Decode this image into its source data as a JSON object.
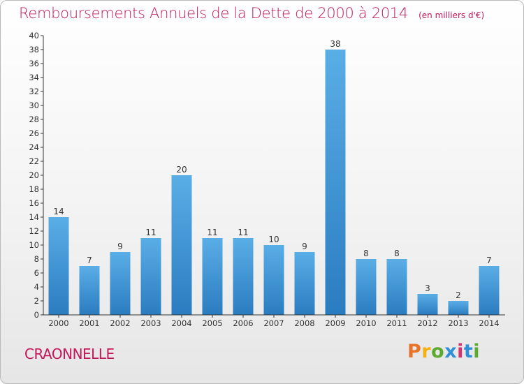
{
  "header": {
    "title": "Remboursements Annuels de la Dette de 2000 à 2014",
    "unit": "(en milliers d'€)"
  },
  "footer": {
    "city": "CRAONNELLE",
    "logo_text": "Proxiti",
    "logo_colors": [
      "#e8742a",
      "#f3b112",
      "#5aab2f",
      "#2f8fd8",
      "#d6336c"
    ]
  },
  "colors": {
    "title": "#c2185b",
    "bar_top": "#5aaee6",
    "bar_bottom": "#2a7cc0",
    "axis": "#333333"
  },
  "chart_data": {
    "type": "bar",
    "categories": [
      "2000",
      "2001",
      "2002",
      "2003",
      "2004",
      "2005",
      "2006",
      "2007",
      "2008",
      "2009",
      "2010",
      "2011",
      "2012",
      "2013",
      "2014"
    ],
    "values": [
      14,
      7,
      9,
      11,
      20,
      11,
      11,
      10,
      9,
      38,
      8,
      8,
      3,
      2,
      7
    ],
    "ylim": [
      0,
      40
    ],
    "yticks": [
      0,
      2,
      4,
      6,
      8,
      10,
      12,
      14,
      16,
      18,
      20,
      22,
      24,
      26,
      28,
      30,
      32,
      34,
      36,
      38,
      40
    ],
    "grid": false,
    "data_labels": true
  }
}
